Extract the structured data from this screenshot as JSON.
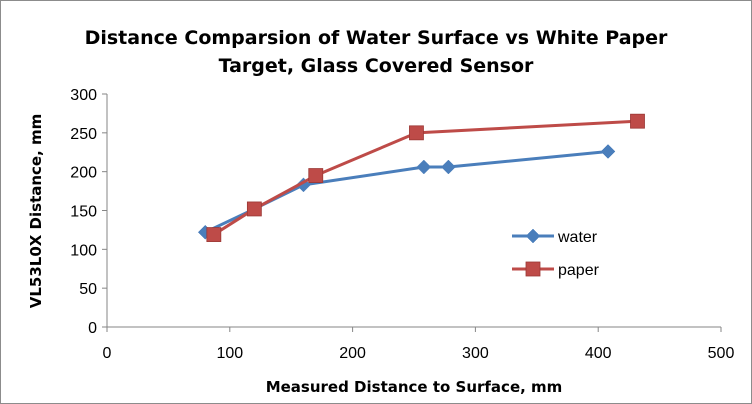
{
  "chart_data": {
    "type": "line",
    "title_lines": [
      "Distance Comparsion of Water Surface vs White Paper",
      "Target, Glass Covered Sensor"
    ],
    "xlabel": "Measured Distance to Surface, mm",
    "ylabel": "VL53L0X Distance, mm",
    "xlim": [
      0,
      500
    ],
    "ylim": [
      0,
      300
    ],
    "xticks": [
      0,
      100,
      200,
      300,
      400,
      500
    ],
    "yticks": [
      0,
      50,
      100,
      150,
      200,
      250,
      300
    ],
    "grid": false,
    "legend_position": "right",
    "series": [
      {
        "name": "water",
        "marker": "diamond",
        "color": "#4a7ebb",
        "points": [
          [
            80,
            122
          ],
          [
            120,
            152
          ],
          [
            160,
            183
          ],
          [
            258,
            206
          ],
          [
            278,
            206
          ],
          [
            408,
            226
          ]
        ]
      },
      {
        "name": "paper",
        "marker": "square",
        "color": "#be4b48",
        "points": [
          [
            87,
            119
          ],
          [
            120,
            152
          ],
          [
            170,
            195
          ],
          [
            252,
            250
          ],
          [
            432,
            265
          ]
        ]
      }
    ]
  }
}
